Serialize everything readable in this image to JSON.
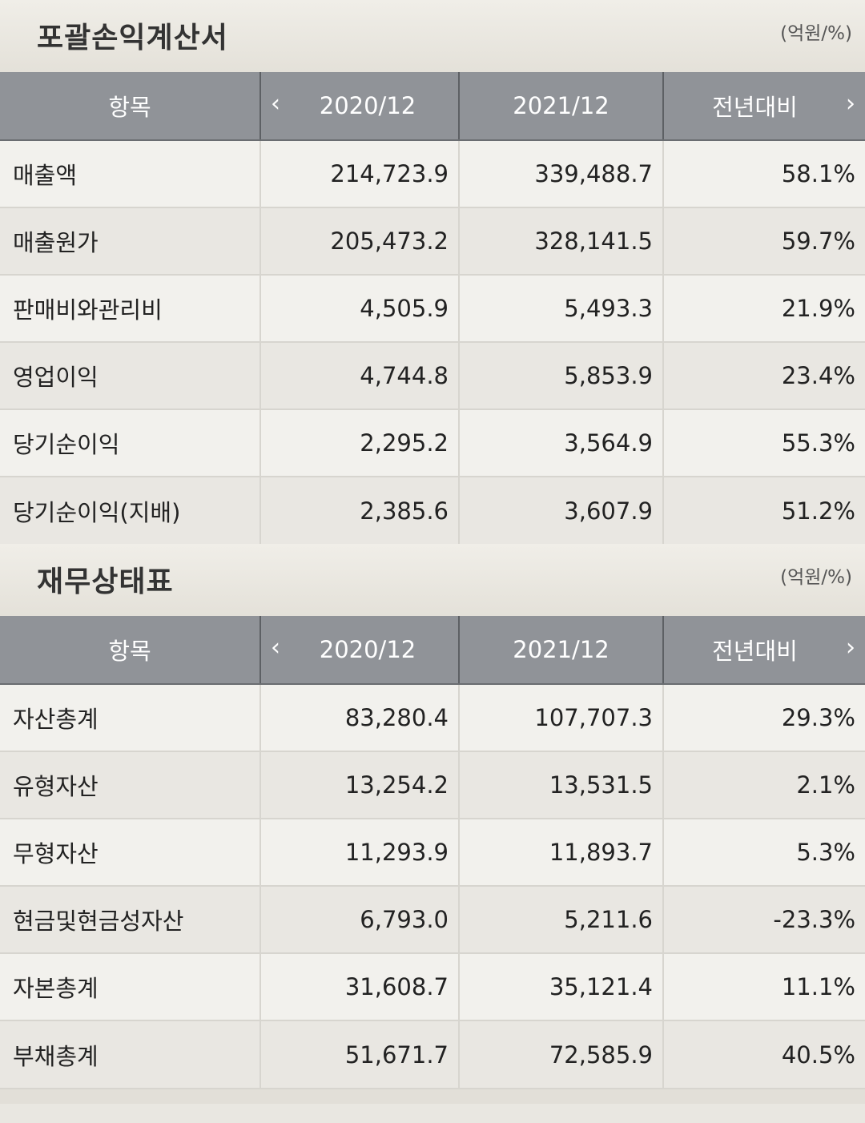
{
  "income_statement": {
    "title": "포괄손익계산서",
    "unit": "(억원/%)",
    "headers": {
      "item": "항목",
      "period_prev": "2020/12",
      "period_curr": "2021/12",
      "yoy": "전년대비"
    },
    "rows": [
      {
        "name": "매출액",
        "v2020": "214,723.9",
        "v2021": "339,488.7",
        "yoy": "58.1%"
      },
      {
        "name": "매출원가",
        "v2020": "205,473.2",
        "v2021": "328,141.5",
        "yoy": "59.7%"
      },
      {
        "name": "판매비와관리비",
        "v2020": "4,505.9",
        "v2021": "5,493.3",
        "yoy": "21.9%"
      },
      {
        "name": "영업이익",
        "v2020": "4,744.8",
        "v2021": "5,853.9",
        "yoy": "23.4%"
      },
      {
        "name": "당기순이익",
        "v2020": "2,295.2",
        "v2021": "3,564.9",
        "yoy": "55.3%"
      },
      {
        "name": "당기순이익(지배)",
        "v2020": "2,385.6",
        "v2021": "3,607.9",
        "yoy": "51.2%"
      }
    ]
  },
  "balance_sheet": {
    "title": "재무상태표",
    "unit": "(억원/%)",
    "headers": {
      "item": "항목",
      "period_prev": "2020/12",
      "period_curr": "2021/12",
      "yoy": "전년대비"
    },
    "rows": [
      {
        "name": "자산총계",
        "v2020": "83,280.4",
        "v2021": "107,707.3",
        "yoy": "29.3%"
      },
      {
        "name": "유형자산",
        "v2020": "13,254.2",
        "v2021": "13,531.5",
        "yoy": "2.1%"
      },
      {
        "name": "무형자산",
        "v2020": "11,293.9",
        "v2021": "11,893.7",
        "yoy": "5.3%"
      },
      {
        "name": "현금및현금성자산",
        "v2020": "6,793.0",
        "v2021": "5,211.6",
        "yoy": "-23.3%"
      },
      {
        "name": "자본총계",
        "v2020": "31,608.7",
        "v2021": "35,121.4",
        "yoy": "11.1%"
      },
      {
        "name": "부채총계",
        "v2020": "51,671.7",
        "v2021": "72,585.9",
        "yoy": "40.5%"
      }
    ]
  },
  "colors": {
    "header_bg": "#909398",
    "negative": "#d03a2c",
    "row_odd": "#f2f1ed",
    "row_even": "#e9e7e2"
  },
  "icons": {
    "prev": "chevron-left-icon",
    "next": "chevron-right-icon"
  }
}
